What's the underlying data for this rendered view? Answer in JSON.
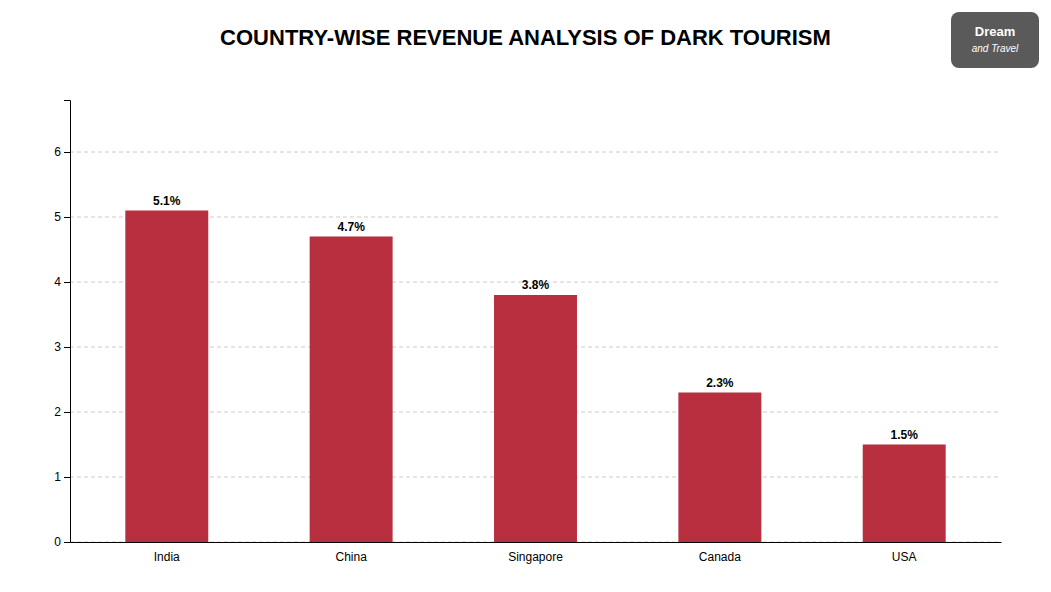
{
  "chart_data": {
    "type": "bar",
    "title": "COUNTRY-WISE REVENUE ANALYSIS OF DARK TOURISM",
    "categories": [
      "India",
      "China",
      "Singapore",
      "Canada",
      "USA"
    ],
    "values": [
      5.1,
      4.7,
      3.8,
      2.3,
      1.5
    ],
    "value_labels": [
      "5.1%",
      "4.7%",
      "3.8%",
      "2.3%",
      "1.5%"
    ],
    "color": "#B83040",
    "ylim": [
      0,
      6.8
    ],
    "yticks": [
      0,
      1,
      2,
      3,
      4,
      5,
      6
    ],
    "grid": true,
    "data_labels": true,
    "annotations": [
      "Dream",
      "and Travel"
    ]
  }
}
